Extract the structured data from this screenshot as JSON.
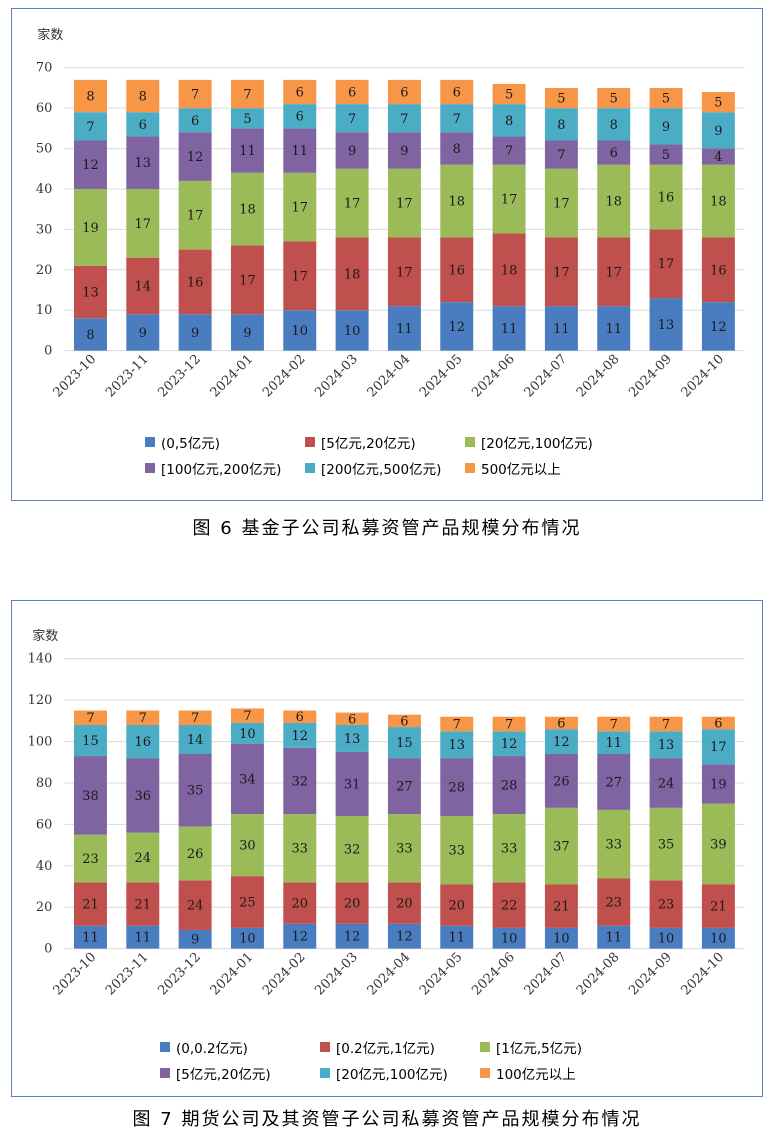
{
  "figures": [
    {
      "caption": "图 6   基金子公司私募资管产品规模分布情况",
      "legend": [
        {
          "label": "(0,5亿元)",
          "color": "#4a7cc0"
        },
        {
          "label": "[5亿元,20亿元)",
          "color": "#c0504d"
        },
        {
          "label": "[20亿元,100亿元)",
          "color": "#9bbb59"
        },
        {
          "label": "[100亿元,200亿元)",
          "color": "#8064a2"
        },
        {
          "label": "[200亿元,500亿元)",
          "color": "#4bacc6"
        },
        {
          "label": "500亿元以上",
          "color": "#f79646"
        }
      ]
    },
    {
      "caption": "图 7   期货公司及其资管子公司私募资管产品规模分布情况",
      "legend": [
        {
          "label": "(0,0.2亿元)",
          "color": "#4a7cc0"
        },
        {
          "label": "[0.2亿元,1亿元)",
          "color": "#c0504d"
        },
        {
          "label": "[1亿元,5亿元)",
          "color": "#9bbb59"
        },
        {
          "label": "[5亿元,20亿元)",
          "color": "#8064a2"
        },
        {
          "label": "[20亿元,100亿元)",
          "color": "#4bacc6"
        },
        {
          "label": "100亿元以上",
          "color": "#f79646"
        }
      ]
    }
  ],
  "chart_data": [
    {
      "type": "bar",
      "stacked": true,
      "ylabel": "家数",
      "ylim": [
        0,
        70
      ],
      "yticks": [
        0,
        10,
        20,
        30,
        40,
        50,
        60,
        70
      ],
      "grid": true,
      "legend_position": "bottom",
      "categories": [
        "2023-10",
        "2023-11",
        "2023-12",
        "2024-01",
        "2024-02",
        "2024-03",
        "2024-04",
        "2024-05",
        "2024-06",
        "2024-07",
        "2024-08",
        "2024-09",
        "2024-10"
      ],
      "series": [
        {
          "name": "(0,5亿元)",
          "color": "#4a7cc0",
          "values": [
            8,
            9,
            9,
            9,
            10,
            10,
            11,
            12,
            11,
            11,
            11,
            13,
            12
          ]
        },
        {
          "name": "[5亿元,20亿元)",
          "color": "#c0504d",
          "values": [
            13,
            14,
            16,
            17,
            17,
            18,
            17,
            16,
            18,
            17,
            17,
            17,
            16
          ]
        },
        {
          "name": "[20亿元,100亿元)",
          "color": "#9bbb59",
          "values": [
            19,
            17,
            17,
            18,
            17,
            17,
            17,
            18,
            17,
            17,
            18,
            16,
            18
          ]
        },
        {
          "name": "[100亿元,200亿元)",
          "color": "#8064a2",
          "values": [
            12,
            13,
            12,
            11,
            11,
            9,
            9,
            8,
            7,
            7,
            6,
            5,
            4
          ]
        },
        {
          "name": "[200亿元,500亿元)",
          "color": "#4bacc6",
          "values": [
            7,
            6,
            6,
            5,
            6,
            7,
            7,
            7,
            8,
            8,
            8,
            9,
            9
          ]
        },
        {
          "name": "500亿元以上",
          "color": "#f79646",
          "values": [
            8,
            8,
            7,
            7,
            6,
            6,
            6,
            6,
            5,
            5,
            5,
            5,
            5
          ]
        }
      ]
    },
    {
      "type": "bar",
      "stacked": true,
      "ylabel": "家数",
      "ylim": [
        0,
        140
      ],
      "yticks": [
        0,
        20,
        40,
        60,
        80,
        100,
        120,
        140
      ],
      "grid": true,
      "legend_position": "bottom",
      "categories": [
        "2023-10",
        "2023-11",
        "2023-12",
        "2024-01",
        "2024-02",
        "2024-03",
        "2024-04",
        "2024-05",
        "2024-06",
        "2024-07",
        "2024-08",
        "2024-09",
        "2024-10"
      ],
      "series": [
        {
          "name": "(0,0.2亿元)",
          "color": "#4a7cc0",
          "values": [
            11,
            11,
            9,
            10,
            12,
            12,
            12,
            11,
            10,
            10,
            11,
            10,
            10
          ]
        },
        {
          "name": "[0.2亿元,1亿元)",
          "color": "#c0504d",
          "values": [
            21,
            21,
            24,
            25,
            20,
            20,
            20,
            20,
            22,
            21,
            23,
            23,
            21
          ]
        },
        {
          "name": "[1亿元,5亿元)",
          "color": "#9bbb59",
          "values": [
            23,
            24,
            26,
            30,
            33,
            32,
            33,
            33,
            33,
            37,
            33,
            35,
            39
          ]
        },
        {
          "name": "[5亿元,20亿元)",
          "color": "#8064a2",
          "values": [
            38,
            36,
            35,
            34,
            32,
            31,
            27,
            28,
            28,
            26,
            27,
            24,
            19
          ]
        },
        {
          "name": "[20亿元,100亿元)",
          "color": "#4bacc6",
          "values": [
            15,
            16,
            14,
            10,
            12,
            13,
            15,
            13,
            12,
            12,
            11,
            13,
            17
          ]
        },
        {
          "name": "100亿元以上",
          "color": "#f79646",
          "values": [
            7,
            7,
            7,
            7,
            6,
            6,
            6,
            7,
            7,
            6,
            7,
            7,
            6
          ]
        }
      ]
    }
  ]
}
